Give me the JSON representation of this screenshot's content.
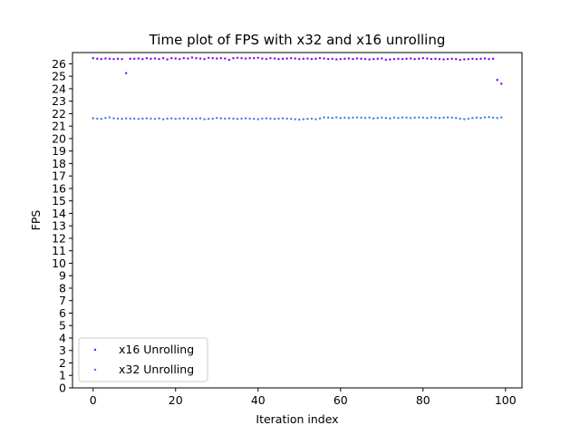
{
  "chart_data": {
    "type": "scatter",
    "title": "Time plot of FPS with x32 and x16 unrolling",
    "xlabel": "Iteration index",
    "ylabel": "FPS",
    "xlim": [
      -5,
      104
    ],
    "ylim": [
      0,
      26.9
    ],
    "xticks": [
      0,
      20,
      40,
      60,
      80,
      100
    ],
    "yticks": [
      0,
      1,
      2,
      3,
      4,
      5,
      6,
      7,
      8,
      9,
      10,
      11,
      12,
      13,
      14,
      15,
      16,
      17,
      18,
      19,
      20,
      21,
      22,
      23,
      24,
      25,
      26
    ],
    "grid": false,
    "legend_position": "lower-left",
    "series": [
      {
        "name": "x16 Unrolling",
        "color": "#8000ff",
        "x": [
          0,
          1,
          2,
          3,
          4,
          5,
          6,
          7,
          8,
          9,
          10,
          11,
          12,
          13,
          14,
          15,
          16,
          17,
          18,
          19,
          20,
          21,
          22,
          23,
          24,
          25,
          26,
          27,
          28,
          29,
          30,
          31,
          32,
          33,
          34,
          35,
          36,
          37,
          38,
          39,
          40,
          41,
          42,
          43,
          44,
          45,
          46,
          47,
          48,
          49,
          50,
          51,
          52,
          53,
          54,
          55,
          56,
          57,
          58,
          59,
          60,
          61,
          62,
          63,
          64,
          65,
          66,
          67,
          68,
          69,
          70,
          71,
          72,
          73,
          74,
          75,
          76,
          77,
          78,
          79,
          80,
          81,
          82,
          83,
          84,
          85,
          86,
          87,
          88,
          89,
          90,
          91,
          92,
          93,
          94,
          95,
          96,
          97,
          98,
          99
        ],
        "y": [
          26.45,
          26.4,
          26.38,
          26.42,
          26.4,
          26.38,
          26.4,
          26.38,
          25.25,
          26.4,
          26.4,
          26.42,
          26.38,
          26.45,
          26.4,
          26.42,
          26.38,
          26.45,
          26.35,
          26.45,
          26.42,
          26.38,
          26.45,
          26.42,
          26.5,
          26.45,
          26.42,
          26.38,
          26.48,
          26.45,
          26.42,
          26.45,
          26.42,
          26.32,
          26.45,
          26.48,
          26.45,
          26.42,
          26.45,
          26.45,
          26.48,
          26.42,
          26.38,
          26.45,
          26.42,
          26.38,
          26.4,
          26.42,
          26.45,
          26.42,
          26.38,
          26.4,
          26.42,
          26.38,
          26.4,
          26.45,
          26.42,
          26.38,
          26.4,
          26.35,
          26.38,
          26.4,
          26.42,
          26.38,
          26.42,
          26.4,
          26.38,
          26.35,
          26.38,
          26.4,
          26.42,
          26.32,
          26.35,
          26.38,
          26.4,
          26.38,
          26.4,
          26.42,
          26.38,
          26.4,
          26.45,
          26.42,
          26.38,
          26.4,
          26.38,
          26.35,
          26.38,
          26.4,
          26.38,
          26.32,
          26.35,
          26.38,
          26.4,
          26.38,
          26.4,
          26.42,
          26.38,
          26.4,
          24.7,
          24.4
        ]
      },
      {
        "name": "x32 Unrolling",
        "color": "#3d7fe0",
        "x": [
          0,
          1,
          2,
          3,
          4,
          5,
          6,
          7,
          8,
          9,
          10,
          11,
          12,
          13,
          14,
          15,
          16,
          17,
          18,
          19,
          20,
          21,
          22,
          23,
          24,
          25,
          26,
          27,
          28,
          29,
          30,
          31,
          32,
          33,
          34,
          35,
          36,
          37,
          38,
          39,
          40,
          41,
          42,
          43,
          44,
          45,
          46,
          47,
          48,
          49,
          50,
          51,
          52,
          53,
          54,
          55,
          56,
          57,
          58,
          59,
          60,
          61,
          62,
          63,
          64,
          65,
          66,
          67,
          68,
          69,
          70,
          71,
          72,
          73,
          74,
          75,
          76,
          77,
          78,
          79,
          80,
          81,
          82,
          83,
          84,
          85,
          86,
          87,
          88,
          89,
          90,
          91,
          92,
          93,
          94,
          95,
          96,
          97,
          98,
          99
        ],
        "y": [
          21.62,
          21.6,
          21.58,
          21.65,
          21.7,
          21.62,
          21.6,
          21.58,
          21.62,
          21.6,
          21.6,
          21.58,
          21.6,
          21.62,
          21.6,
          21.58,
          21.62,
          21.55,
          21.6,
          21.62,
          21.58,
          21.6,
          21.62,
          21.6,
          21.58,
          21.6,
          21.62,
          21.55,
          21.58,
          21.6,
          21.65,
          21.62,
          21.6,
          21.62,
          21.6,
          21.58,
          21.6,
          21.62,
          21.6,
          21.58,
          21.55,
          21.6,
          21.62,
          21.6,
          21.58,
          21.6,
          21.62,
          21.6,
          21.58,
          21.55,
          21.52,
          21.55,
          21.58,
          21.6,
          21.55,
          21.62,
          21.7,
          21.68,
          21.65,
          21.7,
          21.65,
          21.68,
          21.65,
          21.68,
          21.7,
          21.68,
          21.65,
          21.68,
          21.62,
          21.65,
          21.68,
          21.65,
          21.62,
          21.68,
          21.65,
          21.7,
          21.68,
          21.65,
          21.68,
          21.7,
          21.68,
          21.65,
          21.7,
          21.68,
          21.65,
          21.68,
          21.7,
          21.68,
          21.65,
          21.6,
          21.55,
          21.6,
          21.65,
          21.68,
          21.65,
          21.7,
          21.72,
          21.68,
          21.65,
          21.7
        ]
      }
    ]
  }
}
